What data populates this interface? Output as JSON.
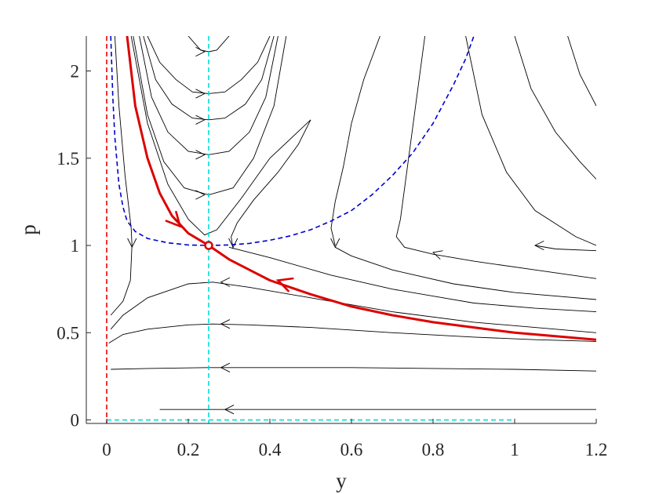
{
  "chart_data": {
    "type": "line",
    "title": "",
    "xlabel": "y",
    "ylabel": "p",
    "xlim": [
      -0.05,
      1.2
    ],
    "ylim": [
      -0.02,
      2.2
    ],
    "xticks": [
      0,
      0.2,
      0.4,
      0.6,
      0.8,
      1,
      1.2
    ],
    "xtick_labels": [
      "0",
      "0.2",
      "0.4",
      "0.6",
      "0.8",
      "1",
      "1.2"
    ],
    "yticks": [
      0,
      0.5,
      1,
      1.5,
      2
    ],
    "ytick_labels": [
      "0",
      "0.5",
      "1",
      "1.5",
      "2"
    ],
    "grid": false,
    "legend": "none",
    "colors": {
      "trajectory": "#000000",
      "separatrix": "#dd0000",
      "nullcline_blue": "#0000cc",
      "nullcline_red": "#ee0000",
      "nullcline_cyan": "#00dddd",
      "axes": "#262626"
    },
    "reference_lines": [
      {
        "name": "y = 0",
        "orientation": "vertical",
        "value": 0,
        "color": "#ee0000",
        "style": "dashed"
      },
      {
        "name": "y = 0.25",
        "orientation": "vertical",
        "value": 0.25,
        "color": "#00dddd",
        "style": "dashed"
      },
      {
        "name": "p = 0",
        "orientation": "horizontal",
        "value": 0,
        "x_range": [
          0,
          1
        ],
        "color": "#00dddd",
        "style": "dashed"
      }
    ],
    "nullcline": {
      "name": "p-nullcline",
      "color": "#0000cc",
      "style": "dashed",
      "points": [
        [
          0.01,
          2.2
        ],
        [
          0.015,
          1.85
        ],
        [
          0.02,
          1.62
        ],
        [
          0.03,
          1.35
        ],
        [
          0.04,
          1.22
        ],
        [
          0.05,
          1.14
        ],
        [
          0.07,
          1.08
        ],
        [
          0.1,
          1.04
        ],
        [
          0.15,
          1.015
        ],
        [
          0.2,
          1.003
        ],
        [
          0.25,
          1.0
        ],
        [
          0.3,
          1.003
        ],
        [
          0.35,
          1.012
        ],
        [
          0.4,
          1.03
        ],
        [
          0.45,
          1.055
        ],
        [
          0.5,
          1.09
        ],
        [
          0.55,
          1.14
        ],
        [
          0.6,
          1.2
        ],
        [
          0.65,
          1.29
        ],
        [
          0.7,
          1.4
        ],
        [
          0.75,
          1.53
        ],
        [
          0.8,
          1.7
        ],
        [
          0.85,
          1.92
        ],
        [
          0.88,
          2.07
        ],
        [
          0.9,
          2.2
        ]
      ]
    },
    "separatrix": {
      "name": "stable manifold",
      "color": "#dd0000",
      "width": 3,
      "points": [
        [
          0.05,
          2.2
        ],
        [
          0.07,
          1.8
        ],
        [
          0.1,
          1.5
        ],
        [
          0.13,
          1.3
        ],
        [
          0.16,
          1.17
        ],
        [
          0.2,
          1.07
        ],
        [
          0.25,
          1.0
        ],
        [
          0.3,
          0.92
        ],
        [
          0.35,
          0.86
        ],
        [
          0.4,
          0.8
        ],
        [
          0.5,
          0.72
        ],
        [
          0.6,
          0.65
        ],
        [
          0.7,
          0.6
        ],
        [
          0.8,
          0.56
        ],
        [
          0.9,
          0.53
        ],
        [
          1.0,
          0.5
        ],
        [
          1.1,
          0.48
        ],
        [
          1.2,
          0.46
        ]
      ],
      "arrows": [
        {
          "at": [
            0.18,
            1.11
          ],
          "direction": [
            1,
            -1.1
          ]
        },
        {
          "at": [
            0.42,
            0.8
          ],
          "direction": [
            -1,
            0.35
          ]
        }
      ],
      "fixed_point": [
        0.25,
        1.0
      ]
    },
    "trajectories": [
      {
        "points": [
          [
            0.1,
            2.2
          ],
          [
            0.13,
            2.05
          ],
          [
            0.17,
            1.95
          ],
          [
            0.21,
            1.88
          ],
          [
            0.25,
            1.87
          ],
          [
            0.29,
            1.88
          ],
          [
            0.33,
            1.95
          ],
          [
            0.37,
            2.05
          ],
          [
            0.4,
            2.2
          ]
        ],
        "arrow": {
          "at": [
            0.24,
            1.87
          ],
          "direction": [
            1,
            0
          ]
        }
      },
      {
        "points": [
          [
            0.09,
            2.2
          ],
          [
            0.12,
            1.95
          ],
          [
            0.16,
            1.81
          ],
          [
            0.21,
            1.73
          ],
          [
            0.25,
            1.72
          ],
          [
            0.29,
            1.73
          ],
          [
            0.34,
            1.81
          ],
          [
            0.38,
            1.95
          ],
          [
            0.41,
            2.2
          ]
        ],
        "arrow": {
          "at": [
            0.24,
            1.72
          ],
          "direction": [
            1,
            0
          ]
        }
      },
      {
        "points": [
          [
            0.08,
            2.2
          ],
          [
            0.11,
            1.85
          ],
          [
            0.15,
            1.65
          ],
          [
            0.2,
            1.54
          ],
          [
            0.25,
            1.52
          ],
          [
            0.3,
            1.54
          ],
          [
            0.35,
            1.65
          ],
          [
            0.39,
            1.85
          ],
          [
            0.42,
            2.2
          ]
        ],
        "arrow": {
          "at": [
            0.24,
            1.52
          ],
          "direction": [
            1,
            0
          ]
        }
      },
      {
        "points": [
          [
            0.065,
            2.2
          ],
          [
            0.1,
            1.75
          ],
          [
            0.14,
            1.48
          ],
          [
            0.19,
            1.33
          ],
          [
            0.25,
            1.29
          ],
          [
            0.31,
            1.33
          ],
          [
            0.36,
            1.5
          ],
          [
            0.41,
            1.8
          ],
          [
            0.44,
            2.2
          ]
        ],
        "arrow": {
          "at": [
            0.24,
            1.29
          ],
          "direction": [
            1,
            0
          ]
        }
      },
      {
        "points": [
          [
            0.2,
            2.2
          ],
          [
            0.23,
            2.12
          ],
          [
            0.25,
            2.11
          ],
          [
            0.27,
            2.12
          ],
          [
            0.3,
            2.2
          ]
        ],
        "arrow": {
          "at": [
            0.24,
            2.11
          ],
          "direction": [
            1,
            0
          ]
        }
      },
      {
        "points": [
          [
            0.06,
            2.2
          ],
          [
            0.1,
            1.7
          ],
          [
            0.15,
            1.35
          ],
          [
            0.2,
            1.15
          ],
          [
            0.24,
            1.06
          ],
          [
            0.27,
            1.09
          ],
          [
            0.33,
            1.27
          ],
          [
            0.4,
            1.5
          ],
          [
            0.5,
            1.72
          ]
        ]
      },
      {
        "points": [
          [
            0.02,
            2.2
          ],
          [
            0.03,
            1.8
          ],
          [
            0.045,
            1.4
          ],
          [
            0.06,
            1.1
          ],
          [
            0.062,
            1.0
          ],
          [
            0.058,
            0.8
          ],
          [
            0.04,
            0.68
          ],
          [
            0.01,
            0.6
          ]
        ],
        "arrow": {
          "at": [
            0.062,
            0.99
          ],
          "direction": [
            0,
            -1
          ]
        }
      },
      {
        "points": [
          [
            0.01,
            0.52
          ],
          [
            0.04,
            0.6
          ],
          [
            0.1,
            0.7
          ],
          [
            0.2,
            0.78
          ],
          [
            0.26,
            0.79
          ],
          [
            0.35,
            0.76
          ],
          [
            0.5,
            0.7
          ],
          [
            0.7,
            0.62
          ],
          [
            0.9,
            0.56
          ],
          [
            1.05,
            0.53
          ],
          [
            1.2,
            0.5
          ]
        ],
        "arrow": {
          "at": [
            0.28,
            0.79
          ],
          "direction": [
            -1,
            0
          ]
        }
      },
      {
        "points": [
          [
            0.005,
            0.44
          ],
          [
            0.04,
            0.49
          ],
          [
            0.1,
            0.52
          ],
          [
            0.2,
            0.545
          ],
          [
            0.26,
            0.55
          ],
          [
            0.35,
            0.545
          ],
          [
            0.5,
            0.53
          ],
          [
            0.7,
            0.5
          ],
          [
            0.9,
            0.475
          ],
          [
            1.05,
            0.46
          ],
          [
            1.2,
            0.45
          ]
        ],
        "arrow": {
          "at": [
            0.28,
            0.55
          ],
          "direction": [
            -1,
            0
          ]
        }
      },
      {
        "points": [
          [
            0.01,
            0.29
          ],
          [
            0.1,
            0.295
          ],
          [
            0.25,
            0.3
          ],
          [
            0.4,
            0.3
          ],
          [
            0.6,
            0.3
          ],
          [
            0.8,
            0.295
          ],
          [
            1.0,
            0.29
          ],
          [
            1.2,
            0.28
          ]
        ],
        "arrow": {
          "at": [
            0.28,
            0.3
          ],
          "direction": [
            -1,
            0
          ]
        }
      },
      {
        "points": [
          [
            0.13,
            0.06
          ],
          [
            0.25,
            0.06
          ],
          [
            0.5,
            0.06
          ],
          [
            0.8,
            0.06
          ],
          [
            1.0,
            0.06
          ],
          [
            1.2,
            0.06
          ]
        ],
        "arrow": {
          "at": [
            0.29,
            0.06
          ],
          "direction": [
            -1,
            0
          ]
        }
      },
      {
        "points": [
          [
            0.31,
            0.98
          ],
          [
            0.305,
            1.05
          ],
          [
            0.32,
            1.13
          ],
          [
            0.36,
            1.26
          ],
          [
            0.42,
            1.42
          ],
          [
            0.47,
            1.58
          ],
          [
            0.5,
            1.72
          ]
        ],
        "arrow": {
          "at": [
            0.31,
            0.99
          ],
          "direction": [
            0,
            -1
          ]
        }
      },
      {
        "points": [
          [
            0.3,
            0.99
          ],
          [
            0.4,
            0.93
          ],
          [
            0.55,
            0.83
          ],
          [
            0.7,
            0.75
          ],
          [
            0.9,
            0.67
          ],
          [
            1.05,
            0.64
          ],
          [
            1.2,
            0.62
          ]
        ]
      },
      {
        "points": [
          [
            0.56,
            1.0
          ],
          [
            0.55,
            1.1
          ],
          [
            0.56,
            1.25
          ],
          [
            0.58,
            1.45
          ],
          [
            0.6,
            1.7
          ],
          [
            0.63,
            1.95
          ],
          [
            0.67,
            2.2
          ]
        ],
        "arrow": {
          "at": [
            0.56,
            0.99
          ],
          "direction": [
            0,
            -1
          ]
        }
      },
      {
        "points": [
          [
            0.56,
            0.99
          ],
          [
            0.6,
            0.94
          ],
          [
            0.7,
            0.86
          ],
          [
            0.85,
            0.78
          ],
          [
            1.0,
            0.73
          ],
          [
            1.2,
            0.69
          ]
        ]
      },
      {
        "points": [
          [
            0.72,
            1.15
          ],
          [
            0.74,
            1.5
          ],
          [
            0.76,
            1.85
          ],
          [
            0.78,
            2.2
          ]
        ]
      },
      {
        "points": [
          [
            0.72,
            1.15
          ],
          [
            0.71,
            1.05
          ],
          [
            0.73,
            0.99
          ],
          [
            0.8,
            0.95
          ],
          [
            0.9,
            0.91
          ],
          [
            1.05,
            0.86
          ],
          [
            1.2,
            0.81
          ]
        ],
        "arrow": {
          "at": [
            0.8,
            0.96
          ],
          "direction": [
            -1,
            0.3
          ]
        }
      },
      {
        "points": [
          [
            0.88,
            2.2
          ],
          [
            0.92,
            1.75
          ],
          [
            0.98,
            1.42
          ],
          [
            1.05,
            1.2
          ],
          [
            1.15,
            1.05
          ],
          [
            1.2,
            1.0
          ]
        ],
        "arrow": {
          "at": [
            1.05,
            1.0
          ],
          "direction": [
            -1,
            0
          ]
        }
      },
      {
        "points": [
          [
            1.0,
            2.2
          ],
          [
            1.04,
            1.9
          ],
          [
            1.1,
            1.65
          ],
          [
            1.16,
            1.48
          ],
          [
            1.2,
            1.38
          ]
        ]
      },
      {
        "points": [
          [
            1.13,
            2.2
          ],
          [
            1.16,
            1.98
          ],
          [
            1.2,
            1.8
          ]
        ]
      },
      {
        "points": [
          [
            1.05,
            1.0
          ],
          [
            1.1,
            0.98
          ],
          [
            1.2,
            0.97
          ]
        ]
      }
    ]
  }
}
